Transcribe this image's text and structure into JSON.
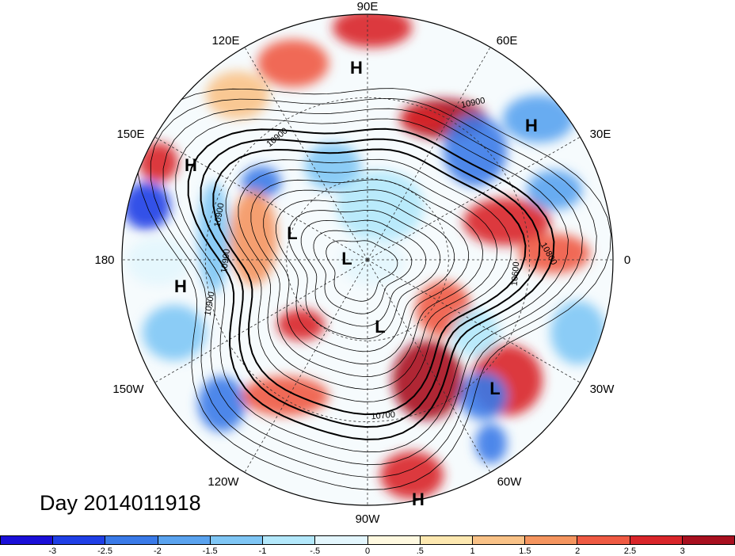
{
  "title": "Day 2014011918",
  "longitude_labels": {
    "top": "90E",
    "top_left": "120E",
    "top_right": "60E",
    "upper_left": "150E",
    "upper_right": "30E",
    "left": "180",
    "right": "0",
    "lower_left": "150W",
    "lower_right": "30W",
    "bottom_left": "120W",
    "bottom_right": "60W",
    "bottom": "90W"
  },
  "pressure_centers": [
    {
      "name": "H",
      "lon_hint": "near 90E"
    },
    {
      "name": "H",
      "lon_hint": "near 40E"
    },
    {
      "name": "H",
      "lon_hint": "near 150E"
    },
    {
      "name": "H",
      "lon_hint": "near 180"
    },
    {
      "name": "H",
      "lon_hint": "near 80W"
    },
    {
      "name": "L",
      "lon_hint": "near 160E"
    },
    {
      "name": "L",
      "lon_hint": "pole"
    },
    {
      "name": "L",
      "lon_hint": "near 80W"
    },
    {
      "name": "L",
      "lon_hint": "near 30W"
    }
  ],
  "contour_labels": [
    "10900",
    "10900",
    "10900",
    "10900",
    "10900",
    "10600",
    "10800",
    "10700",
    "10800"
  ],
  "colorbar": {
    "colors": [
      "#1a0fd8",
      "#1f3fe6",
      "#3a7ae8",
      "#5aa3ef",
      "#7fc6f5",
      "#b3e8fb",
      "#e3f6fd",
      "#fff9e0",
      "#fde8b0",
      "#f9c287",
      "#f5955f",
      "#ef5a43",
      "#d9252a",
      "#a8101f"
    ],
    "ticks": [
      "-3",
      "-2.5",
      "-2",
      "-1.5",
      "-1",
      "-.5",
      "0",
      ".5",
      "1",
      "1.5",
      "2",
      "2.5",
      "3"
    ]
  }
}
